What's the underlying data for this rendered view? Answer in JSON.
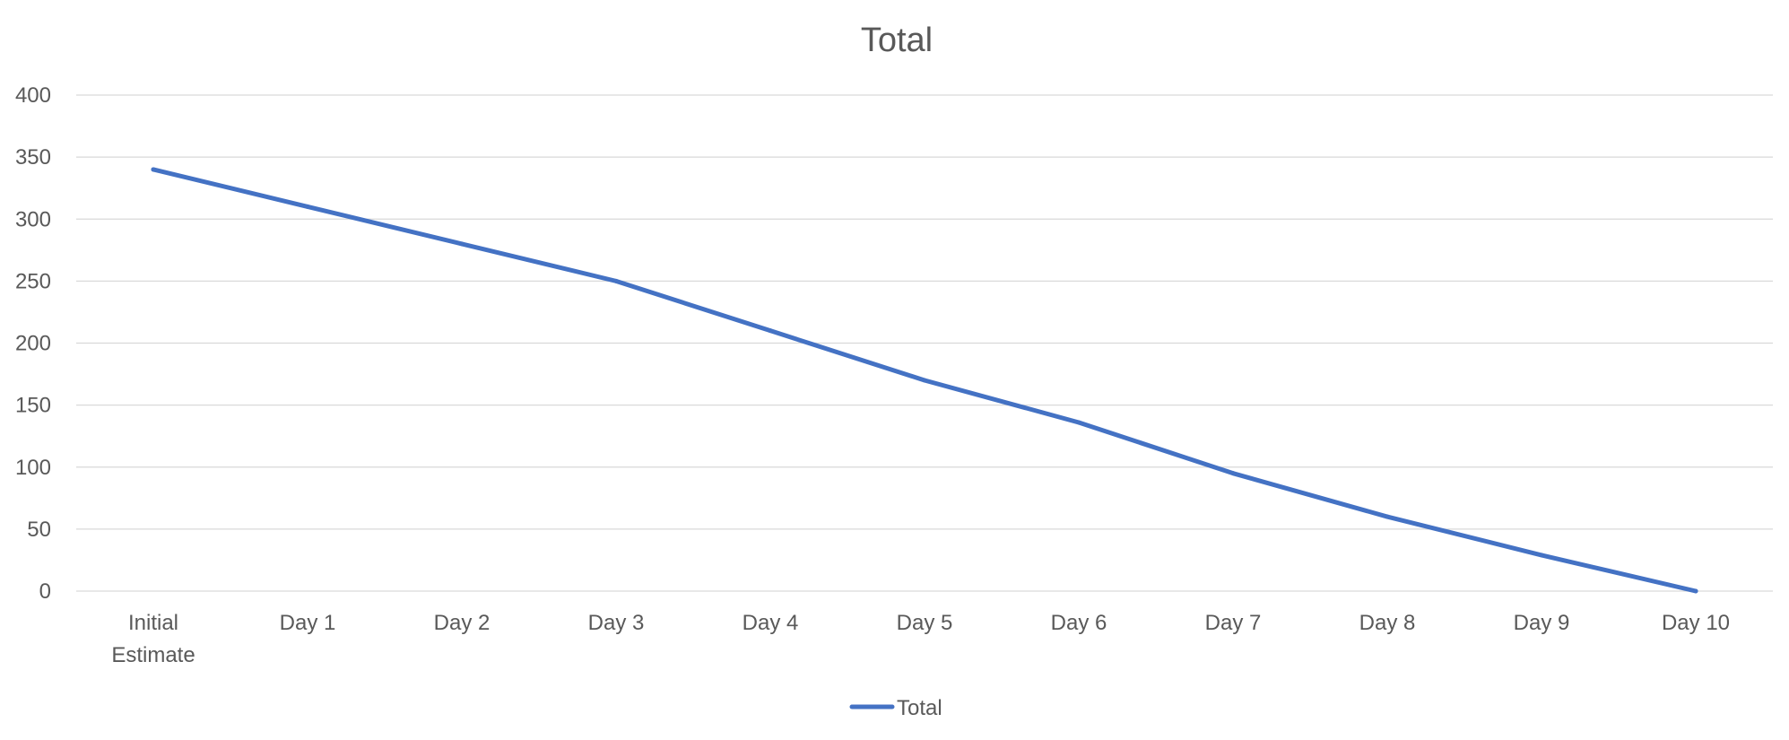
{
  "chart_data": {
    "type": "line",
    "title": "Total",
    "categories": [
      [
        "Initial",
        "Estimate"
      ],
      [
        "Day 1"
      ],
      [
        "Day 2"
      ],
      [
        "Day 3"
      ],
      [
        "Day 4"
      ],
      [
        "Day 5"
      ],
      [
        "Day 6"
      ],
      [
        "Day 7"
      ],
      [
        "Day 8"
      ],
      [
        "Day 9"
      ],
      [
        "Day 10"
      ]
    ],
    "series": [
      {
        "name": "Total",
        "color": "#4472c4",
        "values": [
          340,
          310,
          280,
          250,
          210,
          170,
          136,
          95,
          60,
          29,
          0
        ]
      }
    ],
    "ylim": [
      0,
      400
    ],
    "yticks": [
      0,
      50,
      100,
      150,
      200,
      250,
      300,
      350,
      400
    ],
    "grid": true,
    "legend": "bottom"
  }
}
